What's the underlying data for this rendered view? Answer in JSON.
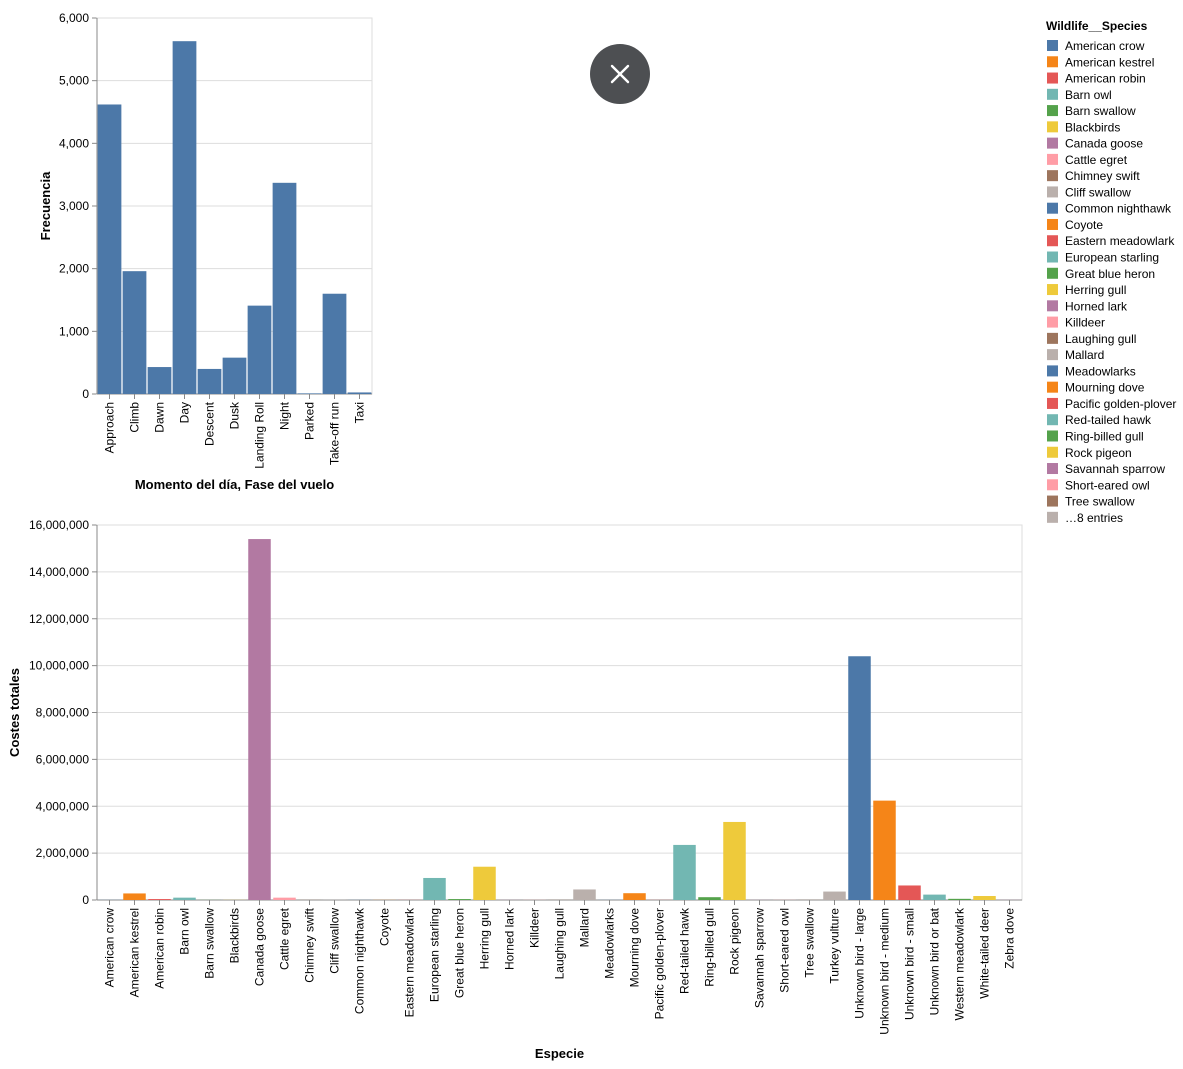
{
  "colors": {
    "bar_top": "#4c78a8",
    "grid": "#dddddd",
    "domain": "#888888",
    "text": "#000000",
    "close_bg": "#4d4f52"
  },
  "icons": {
    "close": "close-icon"
  },
  "chart_data": [
    {
      "type": "bar",
      "xlabel": "Momento del día, Fase del vuelo",
      "ylabel": "Frecuencia",
      "ylim": [
        0,
        6000
      ],
      "yticks": [
        0,
        1000,
        2000,
        3000,
        4000,
        5000,
        6000
      ],
      "ytick_labels": [
        "0",
        "1,000",
        "2,000",
        "3,000",
        "4,000",
        "5,000",
        "6,000"
      ],
      "grid": true,
      "color": "#4c78a8",
      "categories": [
        "Approach",
        "Climb",
        "Dawn",
        "Day",
        "Descent",
        "Dusk",
        "Landing Roll",
        "Night",
        "Parked",
        "Take-off run",
        "Taxi"
      ],
      "values": [
        4620,
        1960,
        430,
        5630,
        400,
        580,
        1410,
        3370,
        10,
        1600,
        25
      ]
    },
    {
      "type": "bar",
      "xlabel": "Especie",
      "ylabel": "Costes totales",
      "ylim": [
        0,
        16000000
      ],
      "yticks": [
        0,
        2000000,
        4000000,
        6000000,
        8000000,
        10000000,
        12000000,
        14000000,
        16000000
      ],
      "ytick_labels": [
        "0",
        "2,000,000",
        "4,000,000",
        "6,000,000",
        "8,000,000",
        "10,000,000",
        "12,000,000",
        "14,000,000",
        "16,000,000"
      ],
      "grid": true,
      "legend_placement": "right",
      "categories": [
        "American crow",
        "American kestrel",
        "American robin",
        "Barn owl",
        "Barn swallow",
        "Blackbirds",
        "Canada goose",
        "Cattle egret",
        "Chimney swift",
        "Cliff swallow",
        "Common nighthawk",
        "Coyote",
        "Eastern meadowlark",
        "European starling",
        "Great blue heron",
        "Herring gull",
        "Horned lark",
        "Killdeer",
        "Laughing gull",
        "Mallard",
        "Meadowlarks",
        "Mourning dove",
        "Pacific golden-plover",
        "Red-tailed hawk",
        "Ring-billed gull",
        "Rock pigeon",
        "Savannah sparrow",
        "Short-eared owl",
        "Tree swallow",
        "Turkey vulture",
        "Unknown bird - large",
        "Unknown bird - medium",
        "Unknown bird - small",
        "Unknown bird or bat",
        "Western meadowlark",
        "White-tailed deer",
        "Zebra dove"
      ],
      "values": [
        5000,
        280000,
        40000,
        100000,
        5000,
        5000,
        15400000,
        100000,
        5000,
        5000,
        5000,
        5000,
        5000,
        940000,
        40000,
        1420000,
        5000,
        5000,
        5000,
        450000,
        5000,
        290000,
        5000,
        2350000,
        120000,
        3330000,
        5000,
        5000,
        5000,
        360000,
        10400000,
        4240000,
        620000,
        230000,
        50000,
        170000,
        5000
      ],
      "colors": [
        "#4c78a8",
        "#f58518",
        "#e45756",
        "#72b7b2",
        "#54a24b",
        "#eeca3b",
        "#b279a2",
        "#ff9da6",
        "#9d755d",
        "#bab0ac",
        "#4c78a8",
        "#f58518",
        "#e45756",
        "#72b7b2",
        "#54a24b",
        "#eeca3b",
        "#b279a2",
        "#ff9da6",
        "#9d755d",
        "#bab0ac",
        "#4c78a8",
        "#f58518",
        "#e45756",
        "#72b7b2",
        "#54a24b",
        "#eeca3b",
        "#b279a2",
        "#ff9da6",
        "#9d755d",
        "#bab0ac",
        "#4c78a8",
        "#f58518",
        "#e45756",
        "#72b7b2",
        "#54a24b",
        "#eeca3b",
        "#b279a2"
      ]
    }
  ],
  "legend": {
    "title": "Wildlife__Species",
    "entries": [
      {
        "label": "American crow",
        "color": "#4c78a8"
      },
      {
        "label": "American kestrel",
        "color": "#f58518"
      },
      {
        "label": "American robin",
        "color": "#e45756"
      },
      {
        "label": "Barn owl",
        "color": "#72b7b2"
      },
      {
        "label": "Barn swallow",
        "color": "#54a24b"
      },
      {
        "label": "Blackbirds",
        "color": "#eeca3b"
      },
      {
        "label": "Canada goose",
        "color": "#b279a2"
      },
      {
        "label": "Cattle egret",
        "color": "#ff9da6"
      },
      {
        "label": "Chimney swift",
        "color": "#9d755d"
      },
      {
        "label": "Cliff swallow",
        "color": "#bab0ac"
      },
      {
        "label": "Common nighthawk",
        "color": "#4c78a8"
      },
      {
        "label": "Coyote",
        "color": "#f58518"
      },
      {
        "label": "Eastern meadowlark",
        "color": "#e45756"
      },
      {
        "label": "European starling",
        "color": "#72b7b2"
      },
      {
        "label": "Great blue heron",
        "color": "#54a24b"
      },
      {
        "label": "Herring gull",
        "color": "#eeca3b"
      },
      {
        "label": "Horned lark",
        "color": "#b279a2"
      },
      {
        "label": "Killdeer",
        "color": "#ff9da6"
      },
      {
        "label": "Laughing gull",
        "color": "#9d755d"
      },
      {
        "label": "Mallard",
        "color": "#bab0ac"
      },
      {
        "label": "Meadowlarks",
        "color": "#4c78a8"
      },
      {
        "label": "Mourning dove",
        "color": "#f58518"
      },
      {
        "label": "Pacific golden-plover",
        "color": "#e45756"
      },
      {
        "label": "Red-tailed hawk",
        "color": "#72b7b2"
      },
      {
        "label": "Ring-billed gull",
        "color": "#54a24b"
      },
      {
        "label": "Rock pigeon",
        "color": "#eeca3b"
      },
      {
        "label": "Savannah sparrow",
        "color": "#b279a2"
      },
      {
        "label": "Short-eared owl",
        "color": "#ff9da6"
      },
      {
        "label": "Tree swallow",
        "color": "#9d755d"
      },
      {
        "label": "…8 entries",
        "color": "#bab0ac"
      }
    ]
  }
}
